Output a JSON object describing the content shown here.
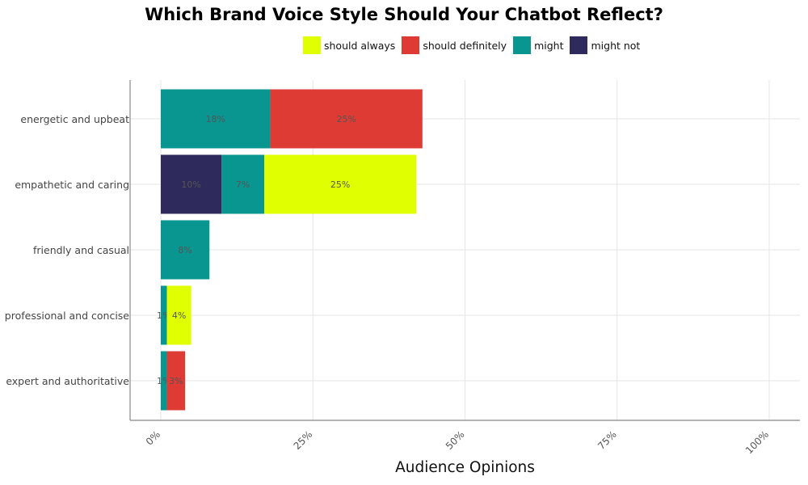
{
  "chart_data": {
    "type": "bar",
    "orientation": "horizontal",
    "stacked": true,
    "title": "Which Brand Voice Style Should Your Chatbot Reflect?",
    "xlabel": "Audience Opinions",
    "ylabel": "",
    "xlim": [
      0,
      100
    ],
    "x_ticks": [
      "0%",
      "25%",
      "50%",
      "75%",
      "100%"
    ],
    "x_tick_values": [
      0,
      25,
      50,
      75,
      100
    ],
    "categories": [
      "energetic and upbeat",
      "empathetic and caring",
      "friendly and casual",
      "professional and concise",
      "expert and authoritative"
    ],
    "series": [
      {
        "name": "might not",
        "color": "#2e2a5c",
        "values": [
          0,
          10,
          0,
          0,
          0
        ],
        "labels": [
          "",
          "10%",
          "",
          "",
          ""
        ]
      },
      {
        "name": "might",
        "color": "#099690",
        "values": [
          18,
          7,
          8,
          1,
          1
        ],
        "labels": [
          "18%",
          "7%",
          "8%",
          "1%",
          "1%"
        ]
      },
      {
        "name": "should always",
        "color": "#e0ff00",
        "values": [
          0,
          25,
          0,
          4,
          0
        ],
        "labels": [
          "",
          "25%",
          "",
          "4%",
          ""
        ]
      },
      {
        "name": "should definitely",
        "color": "#de3b35",
        "values": [
          25,
          0,
          0,
          0,
          3
        ],
        "labels": [
          "25%",
          "",
          "",
          "",
          "3%"
        ]
      }
    ],
    "legend": {
      "position": "top",
      "order": [
        "should always",
        "should definitely",
        "might",
        "might not"
      ]
    },
    "grid": true
  }
}
